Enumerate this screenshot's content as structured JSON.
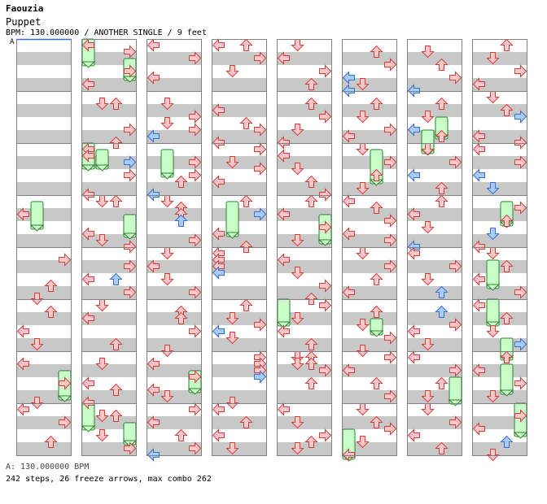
{
  "header": {
    "artist": "Faouzia",
    "title": "Puppet",
    "info": "BPM: 130.000000 / ANOTHER SINGLE / 9 feet"
  },
  "bpm_marker": {
    "label": "A"
  },
  "footer": {
    "bpm_line": "A: 130.000000 BPM",
    "stats": "242 steps, 26 freeze arrows, max combo 262"
  },
  "colors": {
    "stripe": "#c8c8c8",
    "border": "#808080",
    "quarter_fill": "#ffc8c8",
    "quarter_stroke": "#d04040",
    "eighth_fill": "#a8ccff",
    "eighth_stroke": "#3a6ed0",
    "freeze_fill": "#c8ffc8",
    "freeze_stroke": "#308030",
    "marker_line": "#3a6ed0"
  },
  "lane_order": [
    "left",
    "down",
    "up",
    "right"
  ],
  "chart_data": {
    "type": "step-chart",
    "measures_per_column": 8,
    "total_measures": 64,
    "freezes": [
      [
        3,
        1,
        1,
        3,
        3
      ],
      [
        6,
        3,
        3,
        5,
        5
      ],
      [
        8,
        0,
        0,
        2,
        2
      ],
      [
        8,
        3,
        3,
        4,
        4
      ],
      [
        10,
        0,
        0,
        2,
        1
      ],
      [
        10,
        1,
        1,
        2,
        1
      ],
      [
        11,
        3,
        3,
        4,
        5
      ],
      [
        15,
        0,
        0,
        2,
        2
      ],
      [
        15,
        3,
        3,
        4,
        4
      ],
      [
        18,
        1,
        1,
        3,
        3
      ],
      [
        22,
        3,
        3,
        4,
        4
      ],
      [
        27,
        1,
        1,
        4,
        4
      ],
      [
        35,
        3,
        3,
        5,
        5
      ],
      [
        37,
        0,
        0,
        2,
        2
      ],
      [
        42,
        2,
        1,
        4,
        3
      ],
      [
        45,
        2,
        3,
        3,
        5
      ],
      [
        47,
        0,
        4,
        6,
        6
      ],
      [
        49,
        1,
        6,
        7,
        6
      ],
      [
        49,
        2,
        4,
        5,
        4
      ],
      [
        54,
        3,
        4,
        6,
        2
      ],
      [
        59,
        2,
        1,
        2,
        7
      ],
      [
        60,
        1,
        2,
        4,
        4
      ],
      [
        61,
        1,
        0,
        2,
        2
      ],
      [
        61,
        2,
        6,
        7,
        4
      ],
      [
        62,
        2,
        2,
        4,
        6
      ],
      [
        63,
        3,
        0,
        3,
        2
      ]
    ],
    "measures": [
      [],
      [],
      [],
      [
        [
          2,
          0,
          0
        ]
      ],
      [
        [
          1,
          3,
          0
        ],
        [
          5,
          2,
          0
        ],
        [
          7,
          1,
          0
        ]
      ],
      [
        [
          1,
          2,
          0
        ],
        [
          4,
          0,
          0
        ],
        [
          6,
          1,
          0
        ]
      ],
      [
        [
          1,
          0,
          0
        ],
        [
          4,
          3,
          0
        ],
        [
          7,
          1,
          0
        ]
      ],
      [
        [
          0,
          0,
          0
        ],
        [
          2,
          3,
          0
        ],
        [
          5,
          2,
          0
        ]
      ],
      [
        [
          0,
          0,
          0
        ],
        [
          1,
          3,
          0
        ],
        [
          4,
          3,
          0
        ],
        [
          6,
          0,
          0
        ]
      ],
      [
        [
          1,
          1,
          0
        ],
        [
          1,
          2,
          0
        ],
        [
          5,
          3,
          0
        ],
        [
          7,
          2,
          0
        ]
      ],
      [
        [
          0,
          0,
          0
        ],
        [
          1,
          0,
          0
        ],
        [
          2,
          3,
          1
        ],
        [
          4,
          3,
          0
        ],
        [
          7,
          0,
          0
        ]
      ],
      [
        [
          0,
          1,
          0
        ],
        [
          0,
          2,
          0
        ],
        [
          5,
          0,
          0
        ],
        [
          6,
          1,
          0
        ],
        [
          7,
          3,
          0
        ]
      ],
      [
        [
          2,
          3,
          0
        ],
        [
          4,
          0,
          0
        ],
        [
          4,
          2,
          1
        ],
        [
          6,
          3,
          0
        ]
      ],
      [
        [
          0,
          1,
          0
        ],
        [
          2,
          0,
          0
        ],
        [
          6,
          2,
          0
        ]
      ],
      [
        [
          1,
          1,
          0
        ],
        [
          4,
          0,
          0
        ],
        [
          5,
          2,
          0
        ],
        [
          7,
          0,
          0
        ]
      ],
      [
        [
          1,
          1,
          0
        ],
        [
          1,
          2,
          0
        ],
        [
          4,
          1,
          0
        ],
        [
          6,
          3,
          0
        ]
      ],
      [
        [
          0,
          0,
          0
        ],
        [
          2,
          3,
          0
        ],
        [
          5,
          0,
          0
        ]
      ],
      [
        [
          1,
          1,
          0
        ],
        [
          3,
          3,
          0
        ],
        [
          4,
          1,
          0
        ],
        [
          5,
          3,
          0
        ],
        [
          6,
          0,
          1
        ]
      ],
      [
        [
          2,
          3,
          0
        ],
        [
          4,
          3,
          0
        ],
        [
          5,
          2,
          0
        ],
        [
          7,
          0,
          1
        ]
      ],
      [
        [
          0,
          1,
          0
        ],
        [
          1,
          2,
          0
        ],
        [
          2,
          2,
          0
        ],
        [
          3,
          2,
          1
        ],
        [
          6,
          3,
          0
        ]
      ],
      [
        [
          0,
          1,
          0
        ],
        [
          2,
          0,
          0
        ],
        [
          4,
          1,
          0
        ],
        [
          6,
          3,
          0
        ]
      ],
      [
        [
          1,
          2,
          0
        ],
        [
          2,
          2,
          0
        ],
        [
          4,
          3,
          0
        ],
        [
          7,
          1,
          0
        ]
      ],
      [
        [
          1,
          0,
          0
        ],
        [
          3,
          3,
          0
        ],
        [
          5,
          0,
          0
        ],
        [
          6,
          1,
          0
        ]
      ],
      [
        [
          0,
          3,
          0
        ],
        [
          2,
          0,
          0
        ],
        [
          4,
          2,
          0
        ],
        [
          6,
          3,
          0
        ],
        [
          7,
          0,
          1
        ]
      ],
      [
        [
          0,
          0,
          0
        ],
        [
          0,
          2,
          0
        ],
        [
          2,
          3,
          0
        ],
        [
          4,
          1,
          0
        ]
      ],
      [
        [
          2,
          0,
          0
        ],
        [
          4,
          2,
          0
        ],
        [
          5,
          3,
          0
        ],
        [
          7,
          0,
          0
        ]
      ],
      [
        [
          0,
          3,
          0
        ],
        [
          2,
          1,
          0
        ],
        [
          3,
          3,
          0
        ],
        [
          5,
          0,
          0
        ]
      ],
      [
        [
          0,
          2,
          0
        ],
        [
          2,
          3,
          1
        ],
        [
          5,
          0,
          0
        ],
        [
          7,
          2,
          0
        ]
      ],
      [
        [
          0,
          0,
          0
        ],
        [
          1,
          0,
          0
        ],
        [
          2,
          0,
          0
        ],
        [
          3,
          0,
          1
        ]
      ],
      [
        [
          0,
          2,
          0
        ],
        [
          2,
          1,
          0
        ],
        [
          3,
          3,
          0
        ],
        [
          4,
          0,
          1
        ],
        [
          5,
          1,
          0
        ]
      ],
      [
        [
          0,
          3,
          0
        ],
        [
          1,
          3,
          0
        ],
        [
          2,
          3,
          0
        ],
        [
          3,
          3,
          1
        ],
        [
          7,
          1,
          0
        ]
      ],
      [
        [
          0,
          0,
          0
        ],
        [
          2,
          2,
          0
        ],
        [
          4,
          0,
          0
        ],
        [
          6,
          1,
          0
        ]
      ],
      [
        [
          0,
          1,
          0
        ],
        [
          2,
          0,
          0
        ],
        [
          4,
          3,
          0
        ],
        [
          6,
          2,
          0
        ]
      ],
      [
        [
          1,
          2,
          0
        ],
        [
          3,
          3,
          0
        ],
        [
          5,
          1,
          0
        ],
        [
          7,
          0,
          0
        ]
      ],
      [
        [
          1,
          0,
          0
        ],
        [
          3,
          1,
          0
        ],
        [
          5,
          2,
          0
        ],
        [
          7,
          3,
          0
        ]
      ],
      [
        [
          0,
          2,
          0
        ],
        [
          2,
          0,
          0
        ],
        [
          4,
          3,
          0
        ],
        [
          6,
          1,
          0
        ]
      ],
      [
        [
          1,
          0,
          0
        ],
        [
          3,
          1,
          0
        ],
        [
          5,
          3,
          0
        ],
        [
          7,
          2,
          0
        ]
      ],
      [
        [
          0,
          3,
          0
        ],
        [
          2,
          1,
          0
        ],
        [
          4,
          0,
          0
        ],
        [
          6,
          2,
          0
        ]
      ],
      [
        [
          0,
          1,
          0
        ],
        [
          0,
          2,
          0
        ],
        [
          1,
          1,
          0
        ],
        [
          1,
          2,
          0
        ],
        [
          2,
          3,
          0
        ],
        [
          4,
          2,
          0
        ]
      ],
      [
        [
          0,
          0,
          0
        ],
        [
          2,
          1,
          0
        ],
        [
          4,
          3,
          0
        ],
        [
          5,
          2,
          0
        ],
        [
          6,
          1,
          0
        ]
      ],
      [
        [
          1,
          2,
          0
        ],
        [
          3,
          3,
          0
        ],
        [
          5,
          0,
          1
        ],
        [
          6,
          1,
          0
        ],
        [
          7,
          0,
          1
        ]
      ],
      [
        [
          1,
          2,
          0
        ],
        [
          3,
          1,
          0
        ],
        [
          5,
          3,
          0
        ],
        [
          6,
          0,
          0
        ]
      ],
      [
        [
          0,
          1,
          0
        ],
        [
          2,
          3,
          0
        ],
        [
          4,
          2,
          0
        ],
        [
          6,
          1,
          0
        ]
      ],
      [
        [
          0,
          0,
          0
        ],
        [
          1,
          2,
          0
        ],
        [
          3,
          3,
          0
        ],
        [
          5,
          0,
          0
        ],
        [
          6,
          3,
          0
        ]
      ],
      [
        [
          0,
          1,
          0
        ],
        [
          2,
          3,
          0
        ],
        [
          4,
          2,
          0
        ],
        [
          6,
          0,
          0
        ]
      ],
      [
        [
          1,
          2,
          0
        ],
        [
          3,
          1,
          0
        ],
        [
          5,
          3,
          0
        ],
        [
          7,
          1,
          0
        ]
      ],
      [
        [
          0,
          3,
          0
        ],
        [
          2,
          0,
          0
        ],
        [
          4,
          2,
          0
        ],
        [
          6,
          3,
          0
        ]
      ],
      [
        [
          0,
          1,
          0
        ],
        [
          2,
          2,
          0
        ],
        [
          3,
          3,
          0
        ],
        [
          5,
          1,
          0
        ],
        [
          7,
          0,
          0
        ]
      ],
      [
        [
          1,
          1,
          0
        ],
        [
          3,
          2,
          0
        ],
        [
          5,
          3,
          0
        ],
        [
          7,
          0,
          1
        ]
      ],
      [
        [
          1,
          2,
          0
        ],
        [
          3,
          1,
          0
        ],
        [
          5,
          0,
          1
        ],
        [
          6,
          2,
          0
        ]
      ],
      [
        [
          0,
          1,
          0
        ],
        [
          2,
          3,
          0
        ],
        [
          4,
          0,
          1
        ],
        [
          6,
          2,
          0
        ]
      ],
      [
        [
          0,
          2,
          0
        ],
        [
          2,
          0,
          0
        ],
        [
          4,
          1,
          0
        ],
        [
          7,
          0,
          1
        ]
      ],
      [
        [
          0,
          0,
          0
        ],
        [
          2,
          3,
          0
        ],
        [
          4,
          1,
          0
        ],
        [
          6,
          2,
          1
        ]
      ],
      [
        [
          1,
          2,
          1
        ],
        [
          3,
          3,
          0
        ],
        [
          4,
          0,
          0
        ],
        [
          6,
          1,
          0
        ]
      ],
      [
        [
          0,
          0,
          0
        ],
        [
          2,
          3,
          0
        ],
        [
          4,
          2,
          0
        ],
        [
          6,
          1,
          0
        ]
      ],
      [
        [
          0,
          1,
          0
        ],
        [
          2,
          3,
          0
        ],
        [
          4,
          0,
          0
        ],
        [
          6,
          2,
          0
        ]
      ],
      [
        [
          0,
          2,
          0
        ],
        [
          2,
          1,
          0
        ],
        [
          4,
          3,
          0
        ],
        [
          6,
          0,
          0
        ]
      ],
      [
        [
          0,
          1,
          0
        ],
        [
          2,
          2,
          0
        ],
        [
          3,
          3,
          1
        ],
        [
          6,
          0,
          0
        ],
        [
          7,
          3,
          0
        ]
      ],
      [
        [
          0,
          0,
          0
        ],
        [
          2,
          3,
          0
        ],
        [
          4,
          0,
          1
        ],
        [
          6,
          1,
          1
        ]
      ],
      [
        [
          1,
          3,
          0
        ],
        [
          3,
          2,
          0
        ],
        [
          5,
          1,
          1
        ],
        [
          7,
          0,
          0
        ]
      ],
      [
        [
          0,
          1,
          0
        ],
        [
          2,
          2,
          0
        ],
        [
          4,
          0,
          0
        ],
        [
          6,
          3,
          0
        ]
      ],
      [
        [
          0,
          0,
          0
        ],
        [
          2,
          2,
          0
        ],
        [
          4,
          1,
          0
        ],
        [
          6,
          3,
          1
        ]
      ],
      [
        [
          0,
          2,
          0
        ],
        [
          2,
          0,
          0
        ],
        [
          4,
          3,
          0
        ],
        [
          6,
          1,
          0
        ]
      ],
      [
        [
          1,
          3,
          0
        ],
        [
          3,
          0,
          0
        ],
        [
          5,
          2,
          1
        ],
        [
          7,
          1,
          0
        ]
      ]
    ]
  }
}
